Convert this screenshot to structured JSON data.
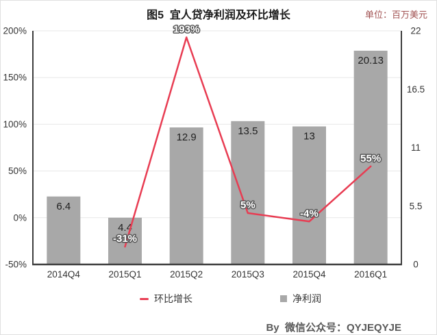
{
  "header": {
    "title": "图5  宜人贷净利润及环比增长",
    "unit_label": "单位：百万美元"
  },
  "legend": {
    "line_label": "环比增长",
    "bar_label": "净利润"
  },
  "footer": {
    "credit": "By  微信公众号：QYJEQYJE"
  },
  "colors": {
    "bar": "#a8a8a8",
    "line": "#e83c52",
    "axis": "#3d3d3d",
    "grid": "#e7e7e7",
    "unit_text": "#a05050",
    "label_outline": "#595959"
  },
  "chart_data": {
    "type": "bar",
    "title": "图5 宜人贷净利润及环比增长",
    "subtitle": "单位：百万美元",
    "categories": [
      "2014Q4",
      "2015Q1",
      "2015Q2",
      "2015Q3",
      "2015Q4",
      "2016Q1"
    ],
    "series": [
      {
        "name": "净利润",
        "type": "bar",
        "axis": "right",
        "unit": "百万美元",
        "values": [
          6.4,
          4.4,
          12.9,
          13.5,
          13,
          20.13
        ],
        "labels": [
          "6.4",
          "4.4",
          "12.9",
          "13.5",
          "13",
          "20.13"
        ]
      },
      {
        "name": "环比增长",
        "type": "line",
        "axis": "left",
        "unit": "%",
        "values": [
          null,
          -31,
          193,
          5,
          -4,
          55
        ],
        "labels": [
          "",
          "-31%",
          "193%",
          "5%",
          "-4%",
          "55%"
        ]
      }
    ],
    "left_axis": {
      "min": -50,
      "max": 200,
      "tick_values": [
        200,
        150,
        100,
        50,
        0,
        -50
      ],
      "tick_labels": [
        "200%",
        "150%",
        "100%",
        "50%",
        "0%",
        "-50%"
      ]
    },
    "right_axis": {
      "min": 0,
      "max": 22,
      "tick_values": [
        22,
        16.5,
        11,
        5.5,
        0
      ],
      "tick_labels": [
        "22",
        "16.5",
        "11",
        "5.5",
        "0"
      ]
    },
    "grid": true,
    "legend_position": "bottom"
  }
}
